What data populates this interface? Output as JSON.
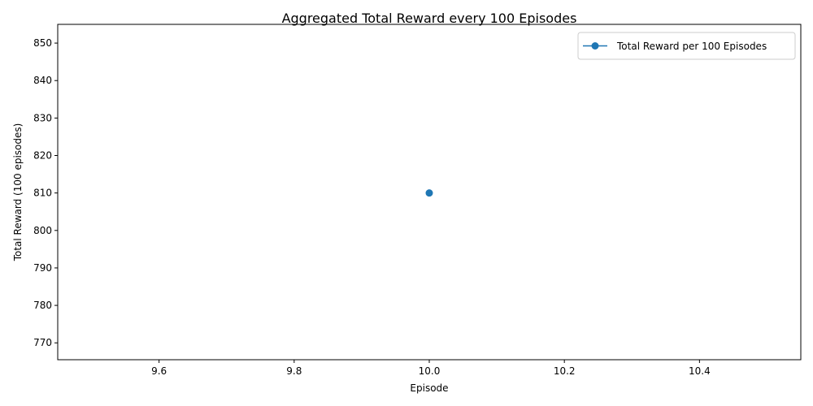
{
  "chart_data": {
    "type": "line",
    "title": "Aggregated Total Reward every 100 Episodes",
    "xlabel": "Episode",
    "ylabel": "Total Reward (100 episodes)",
    "xlim": [
      9.45,
      10.55
    ],
    "ylim": [
      765.5,
      855.0
    ],
    "xticks": [
      9.6,
      9.8,
      10.0,
      10.2,
      10.4
    ],
    "xtick_labels": [
      "9.6",
      "9.8",
      "10.0",
      "10.2",
      "10.4"
    ],
    "yticks": [
      770,
      780,
      790,
      800,
      810,
      820,
      830,
      840,
      850
    ],
    "ytick_labels": [
      "770",
      "780",
      "790",
      "800",
      "810",
      "820",
      "830",
      "840",
      "850"
    ],
    "grid": false,
    "legend_position": "top-right",
    "series": [
      {
        "name": "Total Reward per 100 Episodes",
        "color": "#1f77b4",
        "marker": "circle",
        "x": [
          10.0
        ],
        "y": [
          810
        ]
      }
    ]
  }
}
